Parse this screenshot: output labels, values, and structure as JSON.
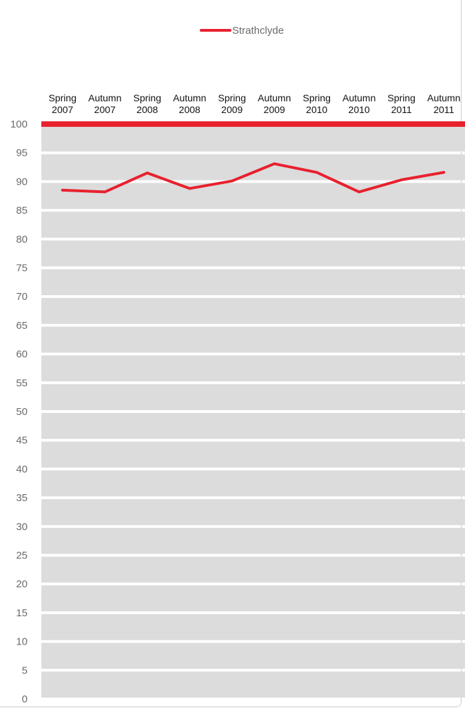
{
  "chart_data": {
    "type": "line",
    "categories": [
      [
        "Spring",
        "2007"
      ],
      [
        "Autumn",
        "2007"
      ],
      [
        "Spring",
        "2008"
      ],
      [
        "Autumn",
        "2008"
      ],
      [
        "Spring",
        "2009"
      ],
      [
        "Autumn",
        "2009"
      ],
      [
        "Spring",
        "2010"
      ],
      [
        "Autumn",
        "2010"
      ],
      [
        "Spring",
        "2011"
      ],
      [
        "Autumn",
        "2011"
      ]
    ],
    "series": [
      {
        "name": "Strathclyde",
        "values": [
          88.5,
          88.2,
          91.5,
          88.8,
          90.1,
          93.1,
          91.6,
          88.2,
          90.3,
          91.6
        ]
      }
    ],
    "ylim": [
      0,
      100
    ],
    "yticks": [
      0,
      5,
      10,
      15,
      20,
      25,
      30,
      35,
      40,
      45,
      50,
      55,
      60,
      65,
      70,
      75,
      80,
      85,
      90,
      95,
      100
    ],
    "legend_position": "top-center",
    "x_axis_position": "top",
    "colors": {
      "series": "#e8212e",
      "band": "#dcdcdc",
      "top_line": "#e8212e"
    }
  }
}
